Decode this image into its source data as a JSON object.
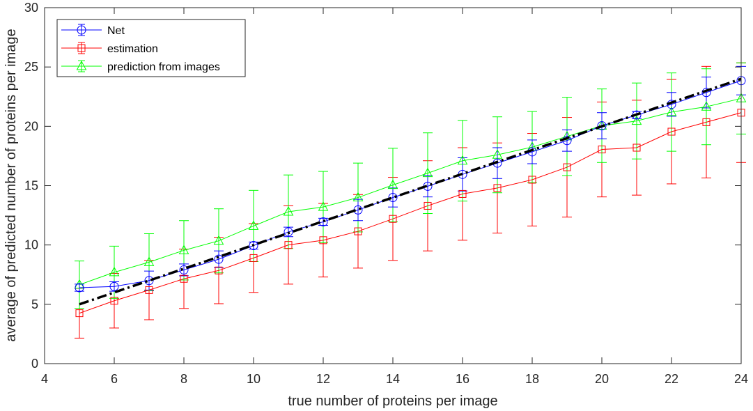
{
  "chart_data": {
    "type": "line",
    "xlabel": "true number of proteins per image",
    "ylabel": "average of predicted number of proteins per image",
    "xlim": [
      4,
      24
    ],
    "ylim": [
      0,
      30
    ],
    "xticks": [
      4,
      6,
      8,
      10,
      12,
      14,
      16,
      18,
      20,
      22,
      24
    ],
    "yticks": [
      0,
      5,
      10,
      15,
      20,
      25,
      30
    ],
    "grid": false,
    "legend_position": "top-left",
    "x": [
      5,
      6,
      7,
      8,
      9,
      10,
      11,
      12,
      13,
      14,
      15,
      16,
      17,
      18,
      19,
      20,
      21,
      22,
      23,
      24
    ],
    "series": [
      {
        "name": "Net",
        "color": "#0000ff",
        "marker": "circle",
        "values": [
          6.4,
          6.5,
          7.0,
          7.9,
          8.8,
          9.95,
          11.1,
          11.95,
          12.95,
          14.0,
          14.95,
          15.95,
          16.9,
          17.85,
          18.8,
          20.05,
          20.95,
          21.85,
          22.85,
          23.85
        ],
        "errors": [
          0.3,
          0.4,
          0.8,
          0.5,
          0.7,
          0.3,
          0.4,
          0.3,
          0.9,
          0.8,
          0.9,
          1.4,
          1.3,
          1.0,
          0.9,
          1.1,
          0.3,
          1.0,
          1.3,
          1.2
        ]
      },
      {
        "name": "estimation",
        "color": "#ff0000",
        "marker": "square",
        "values": [
          4.25,
          5.3,
          6.2,
          7.15,
          7.85,
          8.9,
          10.0,
          10.4,
          11.15,
          12.2,
          13.3,
          14.3,
          14.8,
          15.5,
          16.55,
          18.05,
          18.2,
          19.55,
          20.35,
          21.15
        ],
        "errors": [
          2.1,
          2.3,
          2.5,
          2.5,
          2.8,
          2.9,
          3.3,
          3.1,
          3.1,
          3.5,
          3.8,
          3.9,
          3.8,
          3.9,
          4.2,
          4.0,
          4.0,
          4.4,
          4.7,
          4.2
        ]
      },
      {
        "name": "prediction from images",
        "color": "#00ff00",
        "marker": "triangle",
        "values": [
          6.65,
          7.7,
          8.55,
          9.55,
          10.35,
          11.6,
          12.8,
          13.2,
          14.0,
          15.05,
          16.05,
          17.1,
          17.6,
          18.25,
          19.15,
          20.05,
          20.45,
          21.2,
          21.65,
          22.35
        ],
        "errors": [
          2.0,
          2.2,
          2.4,
          2.5,
          2.7,
          3.0,
          3.1,
          3.0,
          2.9,
          3.1,
          3.4,
          3.4,
          3.2,
          3.0,
          3.3,
          3.1,
          3.2,
          3.3,
          3.2,
          3.0
        ]
      },
      {
        "name": "",
        "color": "#000000",
        "style": "dash-dot",
        "x": [
          5,
          24
        ],
        "values": [
          5,
          24
        ]
      }
    ]
  }
}
